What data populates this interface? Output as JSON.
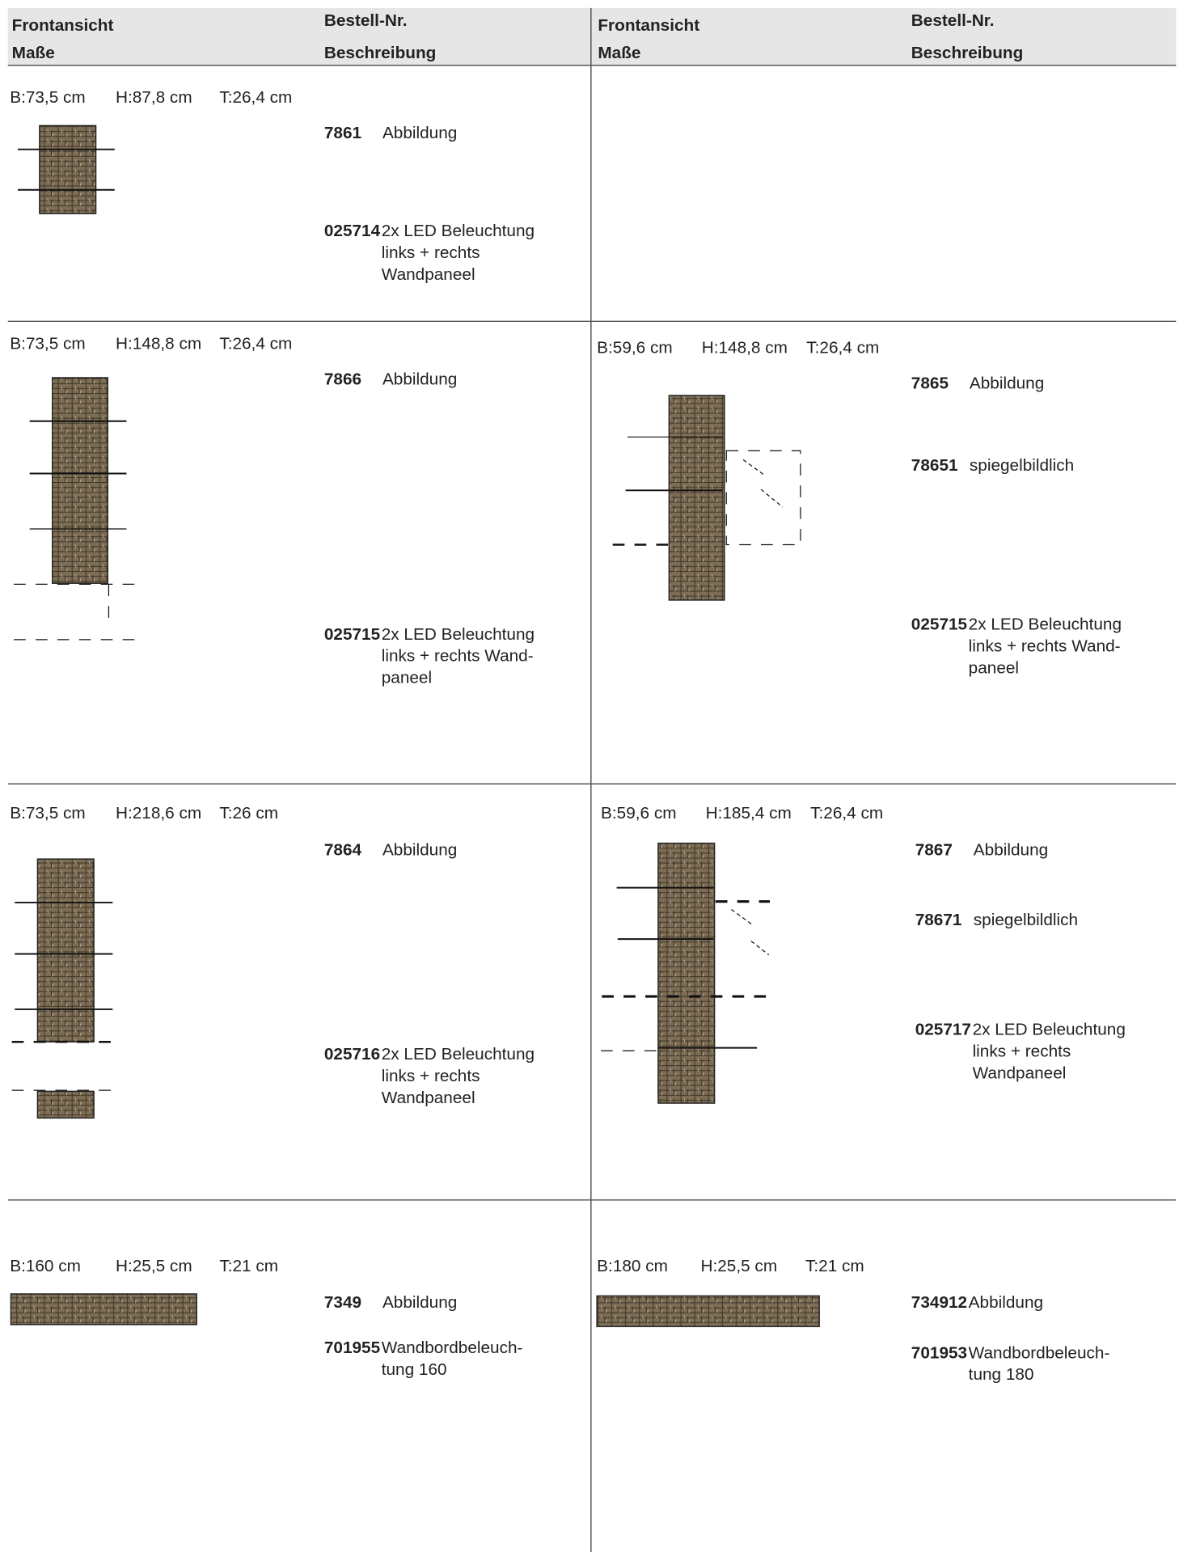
{
  "header": {
    "left": {
      "view": [
        "Frontansicht",
        "Maße"
      ],
      "order": [
        "Bestell-Nr.",
        "Beschreibung"
      ]
    },
    "right": {
      "view": [
        "Frontansicht",
        "Maße"
      ],
      "order": [
        "Bestell-Nr.",
        "Beschreibung"
      ]
    }
  },
  "rows": [
    {
      "left": {
        "dimensions": [
          "B:73,5 cm",
          "H:87,8 cm",
          "T:26,4 cm"
        ],
        "items": [
          {
            "number": "7861",
            "description": [
              "Abbildung"
            ]
          },
          {
            "number": "025714",
            "description": [
              "2x LED Beleuchtung",
              "links + rechts",
              "Wandpaneel"
            ]
          }
        ]
      }
    },
    {
      "left": {
        "dimensions": [
          "B:73,5 cm",
          "H:148,8 cm",
          "T:26,4 cm"
        ],
        "items": [
          {
            "number": "7866",
            "description": [
              "Abbildung"
            ]
          },
          {
            "number": "025715",
            "description": [
              "2x LED Beleuchtung",
              "links + rechts Wand-",
              "paneel"
            ]
          }
        ]
      },
      "right": {
        "dimensions": [
          "B:59,6 cm",
          "H:148,8 cm",
          "T:26,4 cm"
        ],
        "items": [
          {
            "number": "7865",
            "description": [
              "Abbildung"
            ]
          },
          {
            "number": "78651",
            "description": [
              "spiegelbildlich"
            ]
          },
          {
            "number": "025715",
            "description": [
              "2x LED Beleuchtung",
              "links + rechts Wand-",
              "paneel"
            ]
          }
        ]
      }
    },
    {
      "left": {
        "dimensions": [
          "B:73,5 cm",
          "H:218,6 cm",
          "T:26 cm"
        ],
        "items": [
          {
            "number": "7864",
            "description": [
              "Abbildung"
            ]
          },
          {
            "number": "025716",
            "description": [
              "2x LED Beleuchtung",
              "links + rechts",
              "Wandpaneel"
            ]
          }
        ]
      },
      "right": {
        "dimensions": [
          "B:59,6 cm",
          "H:185,4 cm",
          "T:26,4 cm"
        ],
        "items": [
          {
            "number": "7867",
            "description": [
              "Abbildung"
            ]
          },
          {
            "number": "78671",
            "description": [
              "spiegelbildlich"
            ]
          },
          {
            "number": "025717",
            "description": [
              "2x LED Beleuchtung",
              "links + rechts",
              "Wandpaneel"
            ]
          }
        ]
      }
    },
    {
      "left": {
        "dimensions": [
          "B:160 cm",
          "H:25,5 cm",
          "T:21 cm"
        ],
        "items": [
          {
            "number": "7349",
            "description": [
              "Abbildung"
            ]
          },
          {
            "number": "701955",
            "description": [
              "Wandbordbeleuch-",
              "tung 160"
            ]
          }
        ]
      },
      "right": {
        "dimensions": [
          "B:180 cm",
          "H:25,5 cm",
          "T:21 cm"
        ],
        "items": [
          {
            "number": "734912",
            "description": [
              "Abbildung"
            ]
          },
          {
            "number": "701953",
            "description": [
              "Wandbordbeleuch-",
              "tung 180"
            ]
          }
        ]
      }
    }
  ]
}
